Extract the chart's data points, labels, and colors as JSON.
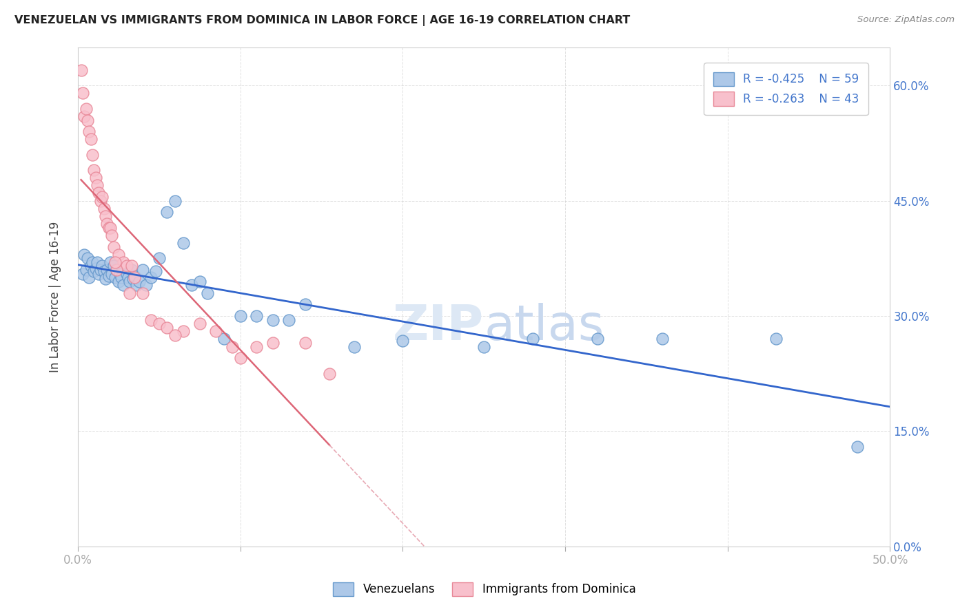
{
  "title": "VENEZUELAN VS IMMIGRANTS FROM DOMINICA IN LABOR FORCE | AGE 16-19 CORRELATION CHART",
  "source": "Source: ZipAtlas.com",
  "ylabel": "In Labor Force | Age 16-19",
  "xlim": [
    0.0,
    0.5
  ],
  "ylim": [
    0.0,
    0.65
  ],
  "legend_blue_label": "Venezuelans",
  "legend_pink_label": "Immigrants from Dominica",
  "legend_blue_R": "R = -0.425",
  "legend_blue_N": "N = 59",
  "legend_pink_R": "R = -0.263",
  "legend_pink_N": "N = 43",
  "blue_scatter_color": "#adc8e8",
  "blue_scatter_edge": "#6699cc",
  "pink_scatter_color": "#f8c0cc",
  "pink_scatter_edge": "#e88898",
  "blue_line_color": "#3366cc",
  "pink_line_color": "#dd6677",
  "pink_dashed_color": "#e8aab5",
  "watermark_zip": "ZIP",
  "watermark_atlas": "atlas",
  "watermark_color": "#dde8f5",
  "background_color": "#ffffff",
  "grid_color": "#cccccc",
  "title_color": "#222222",
  "axis_label_color": "#444444",
  "tick_label_color": "#4477cc",
  "right_ytick_vals": [
    0.0,
    0.15,
    0.3,
    0.45,
    0.6
  ],
  "right_ytick_labels": [
    "0.0%",
    "15.0%",
    "30.0%",
    "45.0%",
    "60.0%"
  ],
  "xtick_vals": [
    0.0,
    0.1,
    0.2,
    0.3,
    0.4,
    0.5
  ],
  "xtick_bottom_labels": [
    "0.0%",
    "",
    "",
    "",
    "",
    "50.0%"
  ],
  "venezuelan_x": [
    0.003,
    0.004,
    0.005,
    0.006,
    0.007,
    0.008,
    0.009,
    0.01,
    0.011,
    0.012,
    0.013,
    0.014,
    0.015,
    0.016,
    0.017,
    0.018,
    0.019,
    0.02,
    0.021,
    0.022,
    0.023,
    0.024,
    0.025,
    0.026,
    0.027,
    0.028,
    0.03,
    0.031,
    0.032,
    0.033,
    0.034,
    0.035,
    0.036,
    0.038,
    0.04,
    0.042,
    0.045,
    0.048,
    0.05,
    0.055,
    0.06,
    0.065,
    0.07,
    0.075,
    0.08,
    0.09,
    0.1,
    0.11,
    0.12,
    0.13,
    0.14,
    0.17,
    0.2,
    0.25,
    0.28,
    0.32,
    0.36,
    0.43,
    0.48
  ],
  "venezuelan_y": [
    0.355,
    0.38,
    0.36,
    0.375,
    0.35,
    0.365,
    0.37,
    0.358,
    0.362,
    0.37,
    0.355,
    0.36,
    0.365,
    0.358,
    0.348,
    0.36,
    0.352,
    0.37,
    0.355,
    0.365,
    0.35,
    0.36,
    0.345,
    0.355,
    0.35,
    0.34,
    0.355,
    0.35,
    0.345,
    0.36,
    0.348,
    0.352,
    0.34,
    0.345,
    0.36,
    0.34,
    0.35,
    0.358,
    0.375,
    0.435,
    0.45,
    0.395,
    0.34,
    0.345,
    0.33,
    0.27,
    0.3,
    0.3,
    0.295,
    0.295,
    0.315,
    0.26,
    0.268,
    0.26,
    0.27,
    0.27,
    0.27,
    0.27,
    0.13
  ],
  "dominica_x": [
    0.002,
    0.003,
    0.004,
    0.005,
    0.006,
    0.007,
    0.008,
    0.009,
    0.01,
    0.011,
    0.012,
    0.013,
    0.014,
    0.015,
    0.016,
    0.017,
    0.018,
    0.019,
    0.02,
    0.021,
    0.022,
    0.025,
    0.028,
    0.03,
    0.033,
    0.035,
    0.04,
    0.045,
    0.05,
    0.055,
    0.065,
    0.075,
    0.085,
    0.095,
    0.11,
    0.12,
    0.14,
    0.155,
    0.06,
    0.032,
    0.024,
    0.023,
    0.1
  ],
  "dominica_y": [
    0.62,
    0.59,
    0.56,
    0.57,
    0.555,
    0.54,
    0.53,
    0.51,
    0.49,
    0.48,
    0.47,
    0.46,
    0.45,
    0.455,
    0.44,
    0.43,
    0.42,
    0.415,
    0.415,
    0.405,
    0.39,
    0.38,
    0.37,
    0.365,
    0.365,
    0.35,
    0.33,
    0.295,
    0.29,
    0.285,
    0.28,
    0.29,
    0.28,
    0.26,
    0.26,
    0.265,
    0.265,
    0.225,
    0.275,
    0.33,
    0.36,
    0.37,
    0.245
  ]
}
